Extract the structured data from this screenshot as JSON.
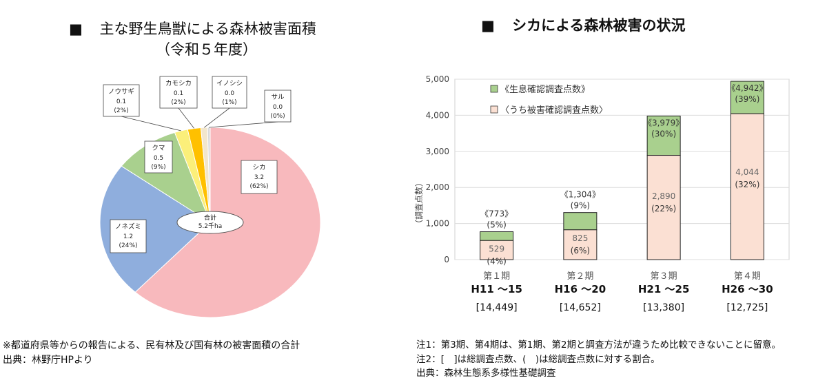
{
  "left": {
    "bullet": "■",
    "title": "主な野生鳥獣による森林被害面積",
    "subtitle": "（令和５年度）",
    "notes": [
      "※都道府県等からの報告による、民有林及び国有林の被害面積の合計",
      "出典：林野庁HPより"
    ]
  },
  "right": {
    "bullet": "■",
    "title": "シカによる森林被害の状況",
    "notes": [
      "注1：第3期、第4期は、第1期、第2期と調査方法が違うため比較できないことに留意。",
      "注2：[　]は総調査点数、(　)は総調査点数に対する割合。",
      "出典：森林生態系多様性基礎調査"
    ]
  },
  "chart_data": [
    {
      "type": "pie",
      "unit": "千ha",
      "center_label": {
        "line1": "合計",
        "line2": "5.2千ha"
      },
      "slices": [
        {
          "name": "シカ",
          "value": 3.2,
          "value_text": "3.2",
          "percent_text": "(62%)",
          "color": "#f8b9bd"
        },
        {
          "name": "ノネズミ",
          "value": 1.2,
          "value_text": "1.2",
          "percent_text": "(24%)",
          "color": "#8faedd"
        },
        {
          "name": "クマ",
          "value": 0.5,
          "value_text": "0.5",
          "percent_text": "(9%)",
          "color": "#a9d08e"
        },
        {
          "name": "ノウサギ",
          "value": 0.1,
          "value_text": "0.1",
          "percent_text": "(2%)",
          "color": "#fbef7a"
        },
        {
          "name": "カモシカ",
          "value": 0.1,
          "value_text": "0.1",
          "percent_text": "(2%)",
          "color": "#ffc000"
        },
        {
          "name": "イノシシ",
          "value": 0.05,
          "value_text": "0.0",
          "percent_text": "(1%)",
          "color": "#f2e6cc"
        },
        {
          "name": "サル",
          "value": 0.02,
          "value_text": "0.0",
          "percent_text": "(0%)",
          "color": "#d9d9d9"
        }
      ]
    },
    {
      "type": "bar",
      "stacked": true,
      "ylabel": "（調査点数）",
      "ylim": [
        0,
        5000
      ],
      "yticks": [
        "0",
        "1,000",
        "2,000",
        "3,000",
        "4,000",
        "5,000"
      ],
      "grid": true,
      "legend_position": "top-left",
      "categories": [
        {
          "period": "第１期",
          "years": "H11 ～15",
          "total": "[14,449]"
        },
        {
          "period": "第２期",
          "years": "H16 ～20",
          "total": "[14,652]"
        },
        {
          "period": "第３期",
          "years": "H21 ～25",
          "total": "[13,380]"
        },
        {
          "period": "第４期",
          "years": "H26 ～30",
          "total": "[12,725]"
        }
      ],
      "series": [
        {
          "name": "《生息確認調査点数》",
          "color": "#a9d08e",
          "totals": [
            773,
            1304,
            3979,
            4942
          ],
          "labels": [
            "《773》",
            "《1,304》",
            "《3,979》",
            "《4,942》"
          ],
          "percents": [
            "(5%)",
            "(9%)",
            "(30%)",
            "(39%)"
          ]
        },
        {
          "name": "〈うち被害確認調査点数〉",
          "color": "#fbe0d3",
          "values": [
            529,
            825,
            2890,
            4044
          ],
          "labels": [
            "529",
            "825",
            "2,890",
            "4,044"
          ],
          "percents": [
            "(4%)",
            "(6%)",
            "(22%)",
            "(32%)"
          ]
        }
      ]
    }
  ]
}
